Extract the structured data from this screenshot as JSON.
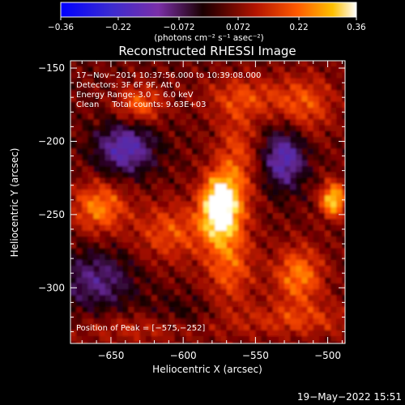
{
  "chart_data": {
    "type": "heatmap",
    "title": "Reconstructed RHESSI Image",
    "xlabel": "Heliocentric X (arcsec)",
    "ylabel": "Heliocentric Y (arcsec)",
    "xlim": [
      -678,
      -488
    ],
    "ylim": [
      -338,
      -145
    ],
    "x_ticks": [
      -650,
      -600,
      -550,
      -500
    ],
    "x_tick_labels": [
      "−650",
      "−600",
      "−550",
      "−500"
    ],
    "y_ticks": [
      -150,
      -200,
      -250,
      -300
    ],
    "y_tick_labels": [
      "−150",
      "−200",
      "−250",
      "−300"
    ],
    "colorbar": {
      "min": -0.36,
      "max": 0.36,
      "ticks": [
        -0.36,
        -0.22,
        -0.072,
        0.072,
        0.22,
        0.36
      ],
      "tick_labels": [
        "−0.36",
        "−0.22",
        "−0.072",
        "0.072",
        "0.22",
        "0.36"
      ],
      "units": "(photons cm⁻² s⁻¹ asec⁻²)"
    },
    "info_lines": [
      "17−Nov−2014 10:37:56.000 to 10:39:08.000",
      "Detectors: 3F 6F 9F, Att 0",
      "Energy Range: 3.0 − 6.0 keV",
      "Clean     Total counts: 9.63E+03"
    ],
    "peak_label": "Position of Peak = [−575,−252]",
    "peak": [
      -575,
      -252
    ],
    "footer_date": "19−May−2022 15:51",
    "colors": {
      "background": "#000000",
      "text": "#ffffff"
    },
    "sources": [
      {
        "x": -575,
        "y": -245,
        "sx": 9,
        "sy": 15,
        "amp": 0.36
      },
      {
        "x": -563,
        "y": -215,
        "sx": 10,
        "sy": 28,
        "amp": 0.12
      },
      {
        "x": -568,
        "y": -285,
        "sx": 12,
        "sy": 20,
        "amp": 0.14
      },
      {
        "x": -520,
        "y": -292,
        "sx": 12,
        "sy": 14,
        "amp": 0.18
      },
      {
        "x": -496,
        "y": -240,
        "sx": 6,
        "sy": 8,
        "amp": 0.27
      },
      {
        "x": -658,
        "y": -245,
        "sx": 13,
        "sy": 12,
        "amp": 0.18
      },
      {
        "x": -608,
        "y": -262,
        "sx": 18,
        "sy": 14,
        "amp": 0.13
      },
      {
        "x": -630,
        "y": -175,
        "sx": 11,
        "sy": 9,
        "amp": 0.15
      },
      {
        "x": -555,
        "y": -170,
        "sx": 22,
        "sy": 10,
        "amp": 0.1
      },
      {
        "x": -515,
        "y": -175,
        "sx": 14,
        "sy": 14,
        "amp": 0.12
      },
      {
        "x": -520,
        "y": -322,
        "sx": 30,
        "sy": 8,
        "amp": 0.1
      },
      {
        "x": -625,
        "y": -328,
        "sx": 35,
        "sy": 7,
        "amp": 0.08
      },
      {
        "x": -640,
        "y": -205,
        "sx": 14,
        "sy": 12,
        "amp": -0.22
      },
      {
        "x": -530,
        "y": -212,
        "sx": 10,
        "sy": 14,
        "amp": -0.22
      },
      {
        "x": -660,
        "y": -295,
        "sx": 18,
        "sy": 14,
        "amp": -0.15
      },
      {
        "x": -600,
        "y": -320,
        "sx": 18,
        "sy": 10,
        "amp": -0.06
      }
    ]
  }
}
